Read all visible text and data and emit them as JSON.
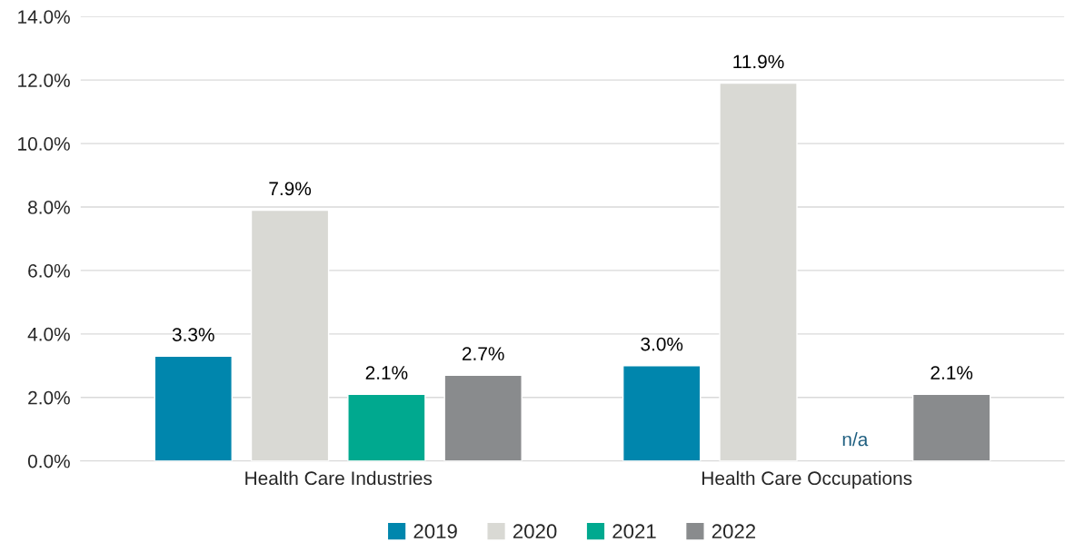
{
  "chart_data": {
    "type": "bar",
    "categories": [
      "Health Care Industries",
      "Health Care Occupations"
    ],
    "series": [
      {
        "name": "2019",
        "color": "#0086ad",
        "values": [
          3.3,
          3.0
        ],
        "value_labels": [
          "3.3%",
          "3.0%"
        ]
      },
      {
        "name": "2020",
        "color": "#d9d9d4",
        "values": [
          7.9,
          11.9
        ],
        "value_labels": [
          "7.9%",
          "11.9%"
        ]
      },
      {
        "name": "2021",
        "color": "#00a98f",
        "values": [
          2.1,
          null
        ],
        "value_labels": [
          "2.1%",
          "n/a"
        ]
      },
      {
        "name": "2022",
        "color": "#898b8d",
        "values": [
          2.7,
          2.1
        ],
        "value_labels": [
          "2.7%",
          "2.1%"
        ]
      }
    ],
    "ylim": [
      0,
      14
    ],
    "yticks": [
      {
        "value": 0,
        "label": "0.0%"
      },
      {
        "value": 2,
        "label": "2.0%"
      },
      {
        "value": 4,
        "label": "4.0%"
      },
      {
        "value": 6,
        "label": "6.0%"
      },
      {
        "value": 8,
        "label": "8.0%"
      },
      {
        "value": 10,
        "label": "10.0%"
      },
      {
        "value": 12,
        "label": "12.0%"
      },
      {
        "value": 14,
        "label": "14.0%"
      }
    ],
    "grid": "y",
    "legend": "bottom"
  }
}
